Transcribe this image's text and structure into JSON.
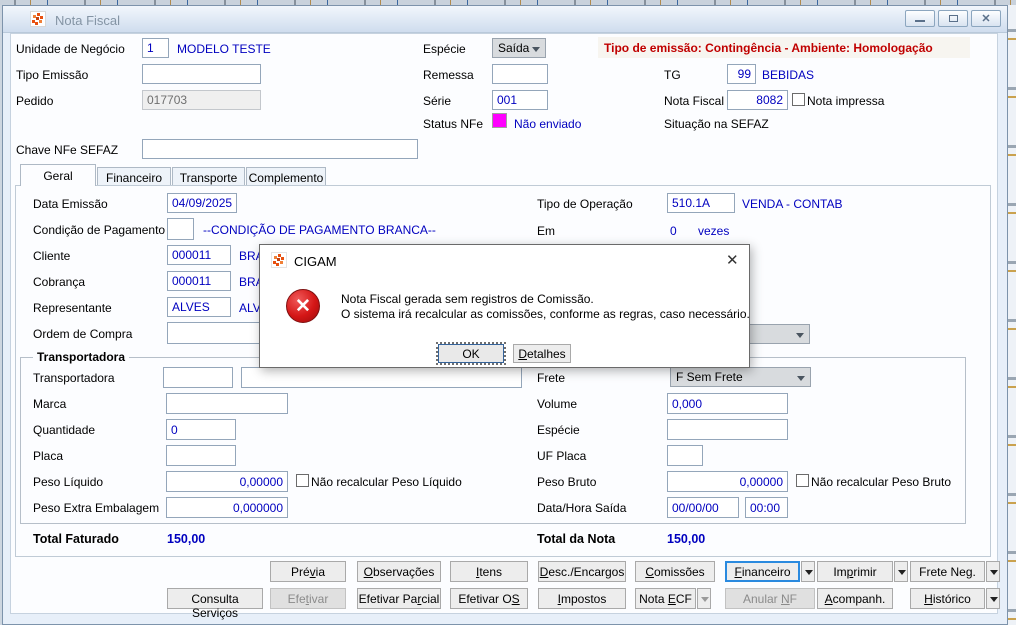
{
  "window": {
    "title": "Nota Fiscal"
  },
  "colors": {
    "value_blue": "#0000bf",
    "warning_red": "#c00000",
    "status_magenta": "#ff00ff"
  },
  "header": {
    "unidade_label": "Unidade de Negócio",
    "unidade_value": "1",
    "unidade_desc": "MODELO TESTE",
    "tipo_emissao_label": "Tipo Emissão",
    "tipo_emissao_value": "",
    "pedido_label": "Pedido",
    "pedido_value": "017703",
    "especie_label": "Espécie",
    "especie_value": "Saída",
    "remessa_label": "Remessa",
    "remessa_value": "",
    "serie_label": "Série",
    "serie_value": "001",
    "status_nfe_label": "Status NFe",
    "status_nfe_value": "Não enviado",
    "warning": "Tipo de emissão: Contingência - Ambiente: Homologação",
    "tg_label": "TG",
    "tg_value": "99",
    "tg_desc": "BEBIDAS",
    "nota_fiscal_label": "Nota Fiscal",
    "nota_fiscal_value": "8082",
    "nota_impressa_label": "Nota impressa",
    "situacao_label": "Situação na SEFAZ",
    "chave_label": "Chave NFe SEFAZ",
    "chave_value": ""
  },
  "tabs": [
    {
      "label": "Geral"
    },
    {
      "label": "Financeiro"
    },
    {
      "label": "Transporte"
    },
    {
      "label": "Complemento"
    }
  ],
  "geral": {
    "data_emissao_label": "Data Emissão",
    "data_emissao_value": "04/09/2025",
    "tipo_operacao_label": "Tipo de Operação",
    "tipo_operacao_value": "510.1A",
    "tipo_operacao_desc": "VENDA - CONTAB",
    "condicao_label": "Condição de Pagamento",
    "condicao_value": "",
    "condicao_desc": "--CONDIÇÃO DE PAGAMENTO BRANCA--",
    "em_label": "Em",
    "em_value": "0",
    "em_unit": "vezes",
    "cliente_label": "Cliente",
    "cliente_value": "000011",
    "cliente_desc": "BRA",
    "cobranca_label": "Cobrança",
    "cobranca_value": "000011",
    "cobranca_desc": "BRA",
    "representante_label": "Representante",
    "representante_value": "ALVES",
    "representante_desc": "ALV",
    "ordem_label": "Ordem de Compra",
    "ordem_value": ""
  },
  "transportadora": {
    "group_title": "Transportadora",
    "transportadora_label": "Transportadora",
    "transportadora_code": "",
    "transportadora_name": "",
    "marca_label": "Marca",
    "marca_value": "",
    "quantidade_label": "Quantidade",
    "quantidade_value": "0",
    "placa_label": "Placa",
    "placa_value": "",
    "peso_liquido_label": "Peso Líquido",
    "peso_liquido_value": "0,00000",
    "nao_recalc_liquido_label": "Não recalcular Peso Líquido",
    "peso_extra_label": "Peso Extra Embalagem",
    "peso_extra_value": "0,000000",
    "frete_label": "Frete",
    "frete_value": "F Sem Frete",
    "volume_label": "Volume",
    "volume_value": "0,000",
    "especie_label": "Espécie",
    "especie_value": "",
    "uf_placa_label": "UF Placa",
    "uf_placa_value": "",
    "peso_bruto_label": "Peso Bruto",
    "peso_bruto_value": "0,00000",
    "nao_recalc_bruto_label": "Não recalcular Peso Bruto",
    "data_hora_label": "Data/Hora Saída",
    "data_saida_value": "00/00/00",
    "hora_saida_value": "00:00"
  },
  "totals": {
    "faturado_label": "Total Faturado",
    "faturado_value": "150,00",
    "nota_label": "Total da Nota",
    "nota_value": "150,00"
  },
  "dialog": {
    "title": "CIGAM",
    "line1": "Nota Fiscal gerada sem registros de Comissão.",
    "line2": "O sistema irá recalcular as comissões, conforme as regras, caso necessário.",
    "ok": {
      "label": "OK"
    },
    "detalhes": {
      "label": "Detalhes",
      "u": 0
    }
  },
  "buttons": {
    "row1": [
      {
        "label": "Prévia",
        "u": 3
      },
      {
        "label": "Observações",
        "u": 0
      },
      {
        "label": "Itens",
        "u": 0
      },
      {
        "label": "Desc./Encargos",
        "u": 0
      },
      {
        "label": "Comissões",
        "u": 0
      },
      {
        "label": "Financeiro",
        "u": 0
      },
      {
        "label": "Imprimir",
        "u": 2
      },
      {
        "label": "Frete Neg.",
        "u": 8
      }
    ],
    "row2": [
      {
        "label": "Consulta Serviços"
      },
      {
        "label": "Efetivar",
        "u": 3
      },
      {
        "label": "Efetivar Parcial",
        "u": 11
      },
      {
        "label": "Efetivar OS",
        "u": 10
      },
      {
        "label": "Impostos",
        "u": 0
      },
      {
        "label": "Nota ECF",
        "u": 5
      },
      {
        "label": "Anular NF",
        "u": 7
      },
      {
        "label": "Acompanh.",
        "u": 0
      },
      {
        "label": "Histórico",
        "u": 0
      }
    ]
  }
}
